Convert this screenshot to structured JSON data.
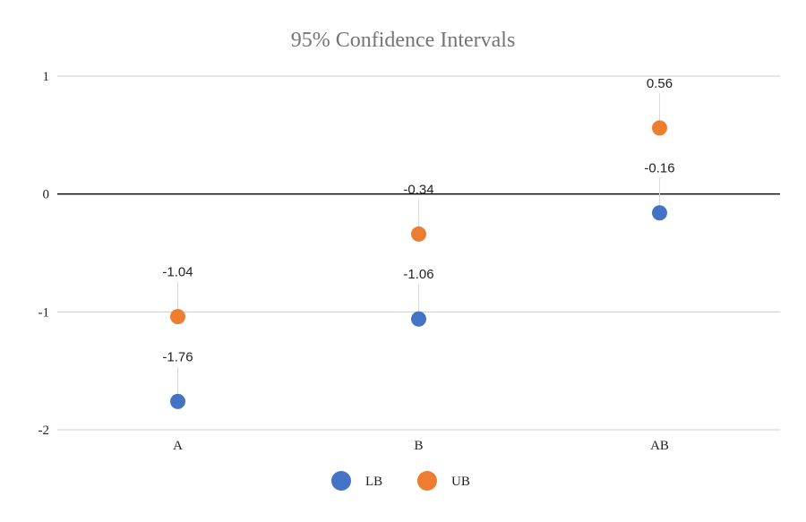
{
  "chart_data": {
    "type": "scatter",
    "title": "95% Confidence Intervals",
    "xlabel": "",
    "ylabel": "",
    "categories": [
      "A",
      "B",
      "AB"
    ],
    "series": [
      {
        "name": "LB",
        "color": "#4472C4",
        "values": [
          -1.76,
          -1.06,
          -0.16
        ]
      },
      {
        "name": "UB",
        "color": "#ED7D31",
        "values": [
          -1.04,
          -0.34,
          0.56
        ]
      }
    ],
    "ylim": [
      -2,
      1
    ],
    "yticks": [
      1,
      0,
      -1,
      -2
    ],
    "ytick_labels": [
      "1",
      "0",
      "-1",
      "-2"
    ],
    "grid": true,
    "legend_position": "bottom",
    "data_labels": true
  }
}
